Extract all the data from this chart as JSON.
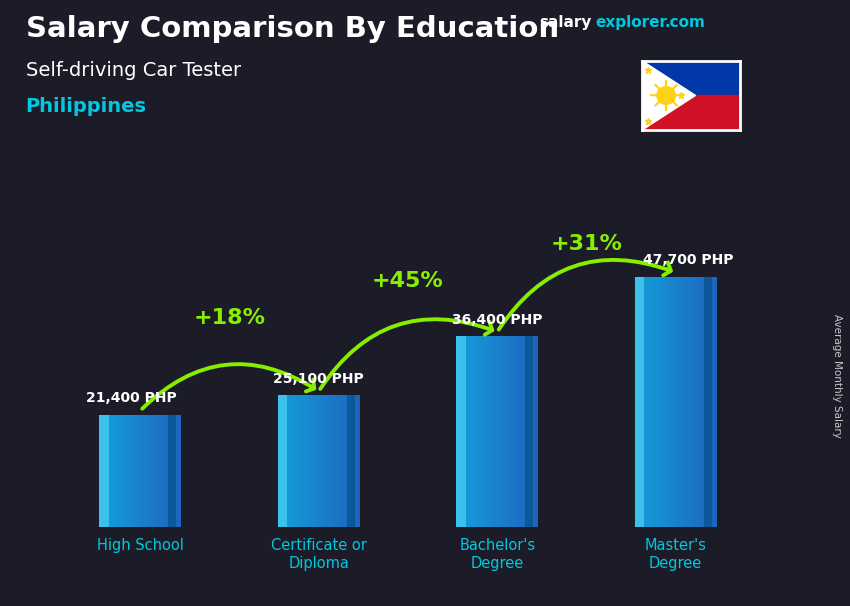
{
  "title_main": "Salary Comparison By Education",
  "title_sub": "Self-driving Car Tester",
  "title_country": "Philippines",
  "branding_salary": "salary",
  "branding_explorer": "explorer",
  "branding_com": ".com",
  "ylabel": "Average Monthly Salary",
  "categories": [
    "High School",
    "Certificate or\nDiploma",
    "Bachelor's\nDegree",
    "Master's\nDegree"
  ],
  "values": [
    21400,
    25100,
    36400,
    47700
  ],
  "labels": [
    "21,400 PHP",
    "25,100 PHP",
    "36,400 PHP",
    "47,700 PHP"
  ],
  "pct_changes": [
    "+18%",
    "+45%",
    "+31%"
  ],
  "text_color_white": "#ffffff",
  "text_color_green": "#88ee00",
  "text_color_cyan": "#00c8e0",
  "xticklabel_color": "#00c8e0",
  "ylim": [
    0,
    60000
  ],
  "bar_width": 0.45
}
